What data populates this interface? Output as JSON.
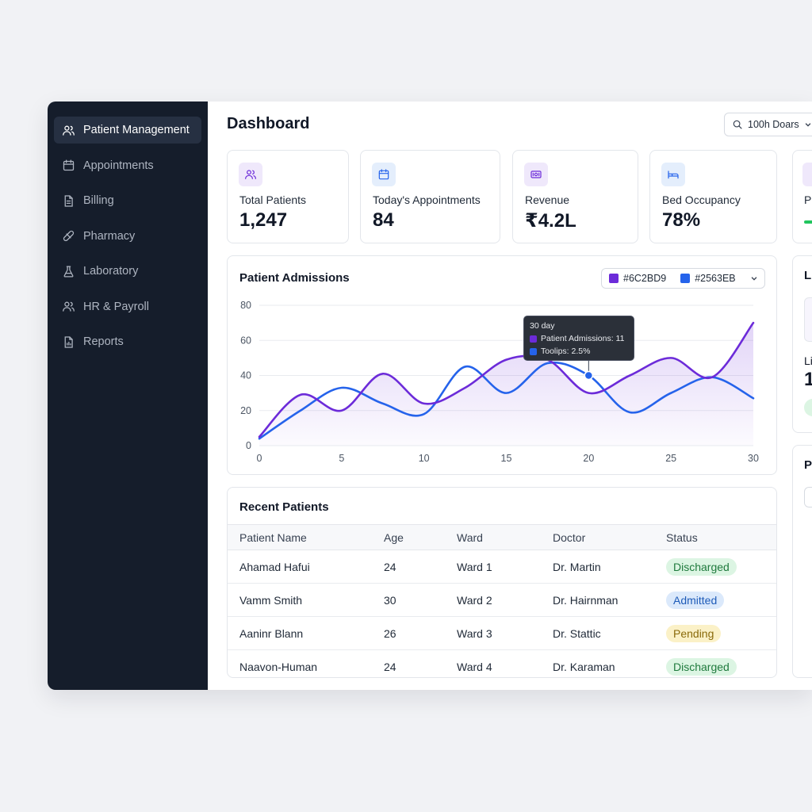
{
  "sidebar": {
    "items": [
      {
        "label": "Patient Management",
        "icon": "users-icon",
        "active": true
      },
      {
        "label": "Appointments",
        "icon": "calendar-icon",
        "active": false
      },
      {
        "label": "Billing",
        "icon": "file-icon",
        "active": false
      },
      {
        "label": "Pharmacy",
        "icon": "pill-icon",
        "active": false
      },
      {
        "label": "Laboratory",
        "icon": "flask-icon",
        "active": false
      },
      {
        "label": "HR & Payroll",
        "icon": "users-icon",
        "active": false
      },
      {
        "label": "Reports",
        "icon": "report-icon",
        "active": false
      }
    ]
  },
  "header": {
    "title": "Dashboard",
    "search_value": "100h Doars"
  },
  "stats": [
    {
      "label": "Total Patients",
      "value": "1,247",
      "icon": "users-icon",
      "color": "#6C2BD9",
      "bg": "#efe8fb"
    },
    {
      "label": "Today's Appointments",
      "value": "84",
      "icon": "calendar-icon",
      "color": "#2563EB",
      "bg": "#e4eefc"
    },
    {
      "label": "Revenue",
      "value": "₹4.2L",
      "icon": "money-icon",
      "color": "#6C2BD9",
      "bg": "#efe8fb"
    },
    {
      "label": "Bed Occupancy",
      "value": "78%",
      "icon": "bed-icon",
      "color": "#2563EB",
      "bg": "#e4eefc"
    },
    {
      "label": "P",
      "value": "",
      "icon": "bar-icon",
      "color": "#6C2BD9",
      "bg": "#efe8fb"
    }
  ],
  "right_panel": {
    "title_cut": "L",
    "label_cut": "Li",
    "value_cut": "1",
    "bottom_title_cut": "P"
  },
  "chart": {
    "title": "Patient Admissions",
    "legend": [
      {
        "name": "#6C2BD9",
        "color": "#6C2BD9"
      },
      {
        "name": "#2563EB",
        "color": "#2563EB"
      }
    ],
    "tooltip": {
      "title": "30 day",
      "line1": "Patient Admissions: 11",
      "line2": "Toolips: 2.5%"
    }
  },
  "chart_data": {
    "type": "line",
    "xlim": [
      0,
      30
    ],
    "ylim": [
      0,
      80
    ],
    "xticks": [
      0,
      5,
      10,
      15,
      20,
      25,
      30
    ],
    "yticks": [
      0,
      20,
      40,
      60,
      80
    ],
    "grid": true,
    "legend_position": "top-right",
    "series": [
      {
        "name": "#6C2BD9",
        "color": "#6C2BD9",
        "x": [
          0,
          2.5,
          5,
          7.5,
          10,
          12.5,
          15,
          17.5,
          20,
          22.5,
          25,
          27.5,
          30
        ],
        "y": [
          5,
          29,
          20,
          41,
          24,
          33,
          49,
          49,
          30,
          40,
          50,
          39,
          70
        ]
      },
      {
        "name": "#2563EB",
        "color": "#2563EB",
        "x": [
          0,
          2.5,
          5,
          7.5,
          10,
          12.5,
          15,
          17.5,
          20,
          22.5,
          25,
          27.5,
          30
        ],
        "y": [
          4,
          20,
          33,
          24,
          18,
          45,
          30,
          47,
          40,
          19,
          30,
          39,
          27
        ]
      }
    ],
    "highlight": {
      "x": 20,
      "y": 40
    }
  },
  "table": {
    "title": "Recent Patients",
    "columns": [
      "Patient Name",
      "Age",
      "Ward",
      "Doctor",
      "Status"
    ],
    "rows": [
      {
        "name": "Ahamad Hafui",
        "age": "24",
        "ward": "Ward 1",
        "doctor": "Dr. Martin",
        "status": "Discharged"
      },
      {
        "name": "Vamm Smith",
        "age": "30",
        "ward": "Ward 2",
        "doctor": "Dr. Hairnman",
        "status": "Admitted"
      },
      {
        "name": "Aaninr Blann",
        "age": "26",
        "ward": "Ward 3",
        "doctor": "Dr. Stattic",
        "status": "Pending"
      },
      {
        "name": "Naavon-Human",
        "age": "24",
        "ward": "Ward 4",
        "doctor": "Dr. Karaman",
        "status": "Discharged"
      }
    ]
  }
}
